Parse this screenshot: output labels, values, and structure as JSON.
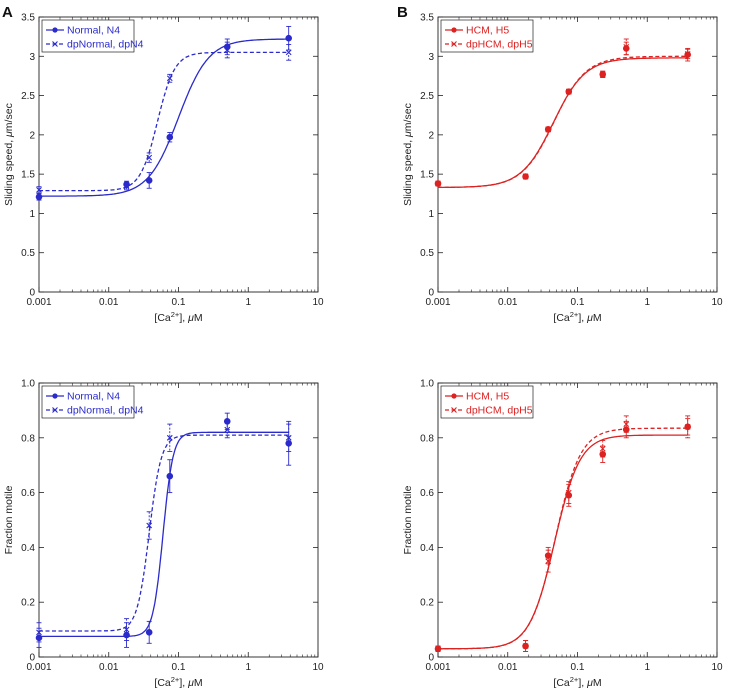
{
  "figure": {
    "panel_letters": [
      "A",
      "B"
    ]
  },
  "chart_data": [
    {
      "id": "A-top",
      "panel": "A",
      "type": "scatter",
      "xscale": "log",
      "xlim": [
        0.001,
        10
      ],
      "ylim": [
        0,
        3.5
      ],
      "xticks": [
        "0.001",
        "0.01",
        "0.1",
        "1",
        "10"
      ],
      "yticks": [
        "0",
        "0.5",
        "1",
        "1.5",
        "2",
        "2.5",
        "3",
        "3.5"
      ],
      "xlabel_parts": [
        "[Ca",
        "2+",
        "], ",
        "μ",
        "M"
      ],
      "ylabel_parts": [
        "Sliding speed, ",
        "μ",
        "m/sec"
      ],
      "color": "#2b2bcc",
      "legend": "top-left",
      "series": [
        {
          "name": "Normal, N4",
          "style": "solid",
          "marker": "circle",
          "x": [
            0.001,
            0.018,
            0.038,
            0.075,
            0.5,
            3.8
          ],
          "y": [
            1.21,
            1.37,
            1.42,
            1.97,
            3.12,
            3.23
          ],
          "err": [
            0.04,
            0.04,
            0.1,
            0.06,
            0.1,
            0.15
          ],
          "fit": {
            "bottom": 1.22,
            "top": 3.22,
            "ec50": 0.1,
            "n": 2.0
          }
        },
        {
          "name": "dpNormal, dpN4",
          "style": "dashed",
          "marker": "x",
          "x": [
            0.001,
            0.018,
            0.038,
            0.075,
            0.5,
            3.8
          ],
          "y": [
            1.3,
            1.34,
            1.71,
            2.72,
            3.08,
            3.05
          ],
          "err": [
            0.04,
            0.04,
            0.06,
            0.05,
            0.1,
            0.1
          ],
          "fit": {
            "bottom": 1.29,
            "top": 3.05,
            "ec50": 0.05,
            "n": 3.5
          }
        }
      ]
    },
    {
      "id": "B-top",
      "panel": "B",
      "type": "scatter",
      "xscale": "log",
      "xlim": [
        0.001,
        10
      ],
      "ylim": [
        0,
        3.5
      ],
      "xticks": [
        "0.001",
        "0.01",
        "0.1",
        "1",
        "10"
      ],
      "yticks": [
        "0",
        "0.5",
        "1",
        "1.5",
        "2",
        "2.5",
        "3",
        "3.5"
      ],
      "xlabel_parts": [
        "[Ca",
        "2+",
        "], ",
        "μ",
        "M"
      ],
      "ylabel_parts": [
        "Sliding speed, ",
        "μ",
        "m/sec"
      ],
      "color": "#dd2222",
      "legend": "top-left",
      "series": [
        {
          "name": "HCM, H5",
          "style": "solid",
          "marker": "circle",
          "x": [
            0.001,
            0.018,
            0.038,
            0.075,
            0.23,
            0.5,
            3.8
          ],
          "y": [
            1.38,
            1.47,
            2.07,
            2.55,
            2.77,
            3.1,
            3.02
          ],
          "err": [
            0.03,
            0.03,
            0.03,
            0.03,
            0.04,
            0.08,
            0.08
          ],
          "fit": {
            "bottom": 1.33,
            "top": 2.98,
            "ec50": 0.045,
            "n": 1.9
          }
        },
        {
          "name": "dpHCM, dpH5",
          "style": "dashed",
          "marker": "x",
          "x": [
            0.001,
            0.018,
            0.038,
            0.075,
            0.23,
            0.5,
            3.8
          ],
          "y": [
            1.38,
            1.47,
            2.07,
            2.55,
            2.77,
            3.12,
            3.03
          ],
          "err": [
            0.03,
            0.03,
            0.03,
            0.03,
            0.04,
            0.1,
            0.06
          ],
          "fit": {
            "bottom": 1.33,
            "top": 3.0,
            "ec50": 0.046,
            "n": 1.9
          }
        }
      ]
    },
    {
      "id": "A-bottom",
      "panel": "A",
      "type": "scatter",
      "xscale": "log",
      "xlim": [
        0.001,
        10
      ],
      "ylim": [
        0,
        1.0
      ],
      "xticks": [
        "0.001",
        "0.01",
        "0.1",
        "1",
        "10"
      ],
      "yticks": [
        "0",
        "0.2",
        "0.4",
        "0.6",
        "0.8",
        "1.0"
      ],
      "xlabel_parts": [
        "[Ca",
        "2+",
        "], ",
        "μ",
        "M"
      ],
      "ylabel_parts": [
        "Fraction motile"
      ],
      "color": "#2b2bcc",
      "legend": "top-left",
      "series": [
        {
          "name": "Normal, N4",
          "style": "solid",
          "marker": "circle",
          "x": [
            0.001,
            0.018,
            0.038,
            0.075,
            0.5,
            3.8
          ],
          "y": [
            0.07,
            0.08,
            0.09,
            0.66,
            0.86,
            0.78
          ],
          "err": [
            0.035,
            0.045,
            0.04,
            0.06,
            0.03,
            0.08
          ],
          "fit": {
            "bottom": 0.075,
            "top": 0.82,
            "ec50": 0.06,
            "n": 6
          }
        },
        {
          "name": "dpNormal, dpN4",
          "style": "dashed",
          "marker": "x",
          "x": [
            0.001,
            0.018,
            0.038,
            0.075,
            0.5,
            3.8
          ],
          "y": [
            0.09,
            0.1,
            0.48,
            0.8,
            0.83,
            0.8
          ],
          "err": [
            0.035,
            0.04,
            0.05,
            0.05,
            0.03,
            0.05
          ],
          "fit": {
            "bottom": 0.095,
            "top": 0.81,
            "ec50": 0.038,
            "n": 5
          }
        }
      ]
    },
    {
      "id": "B-bottom",
      "panel": "B",
      "type": "scatter",
      "xscale": "log",
      "xlim": [
        0.001,
        10
      ],
      "ylim": [
        0,
        1.0
      ],
      "xticks": [
        "0.001",
        "0.01",
        "0.1",
        "1",
        "10"
      ],
      "yticks": [
        "0",
        "0.2",
        "0.4",
        "0.6",
        "0.8",
        "1.0"
      ],
      "xlabel_parts": [
        "[Ca",
        "2+",
        "], ",
        "μ",
        "M"
      ],
      "ylabel_parts": [
        "Fraction motile"
      ],
      "color": "#dd2222",
      "legend": "top-left",
      "series": [
        {
          "name": "HCM, H5",
          "style": "solid",
          "marker": "circle",
          "x": [
            0.001,
            0.018,
            0.038,
            0.075,
            0.23,
            0.5,
            3.8
          ],
          "y": [
            0.03,
            0.04,
            0.37,
            0.59,
            0.74,
            0.83,
            0.84
          ],
          "err": [
            0.01,
            0.02,
            0.03,
            0.04,
            0.03,
            0.03,
            0.03
          ],
          "fit": {
            "bottom": 0.03,
            "top": 0.81,
            "ec50": 0.047,
            "n": 2.4
          }
        },
        {
          "name": "dpHCM, dpH5",
          "style": "dashed",
          "marker": "x",
          "x": [
            0.001,
            0.018,
            0.038,
            0.075,
            0.23,
            0.5,
            3.8
          ],
          "y": [
            0.03,
            0.04,
            0.35,
            0.6,
            0.76,
            0.85,
            0.84
          ],
          "err": [
            0.01,
            0.02,
            0.04,
            0.04,
            0.03,
            0.03,
            0.04
          ],
          "fit": {
            "bottom": 0.03,
            "top": 0.835,
            "ec50": 0.048,
            "n": 2.4
          }
        }
      ]
    }
  ]
}
